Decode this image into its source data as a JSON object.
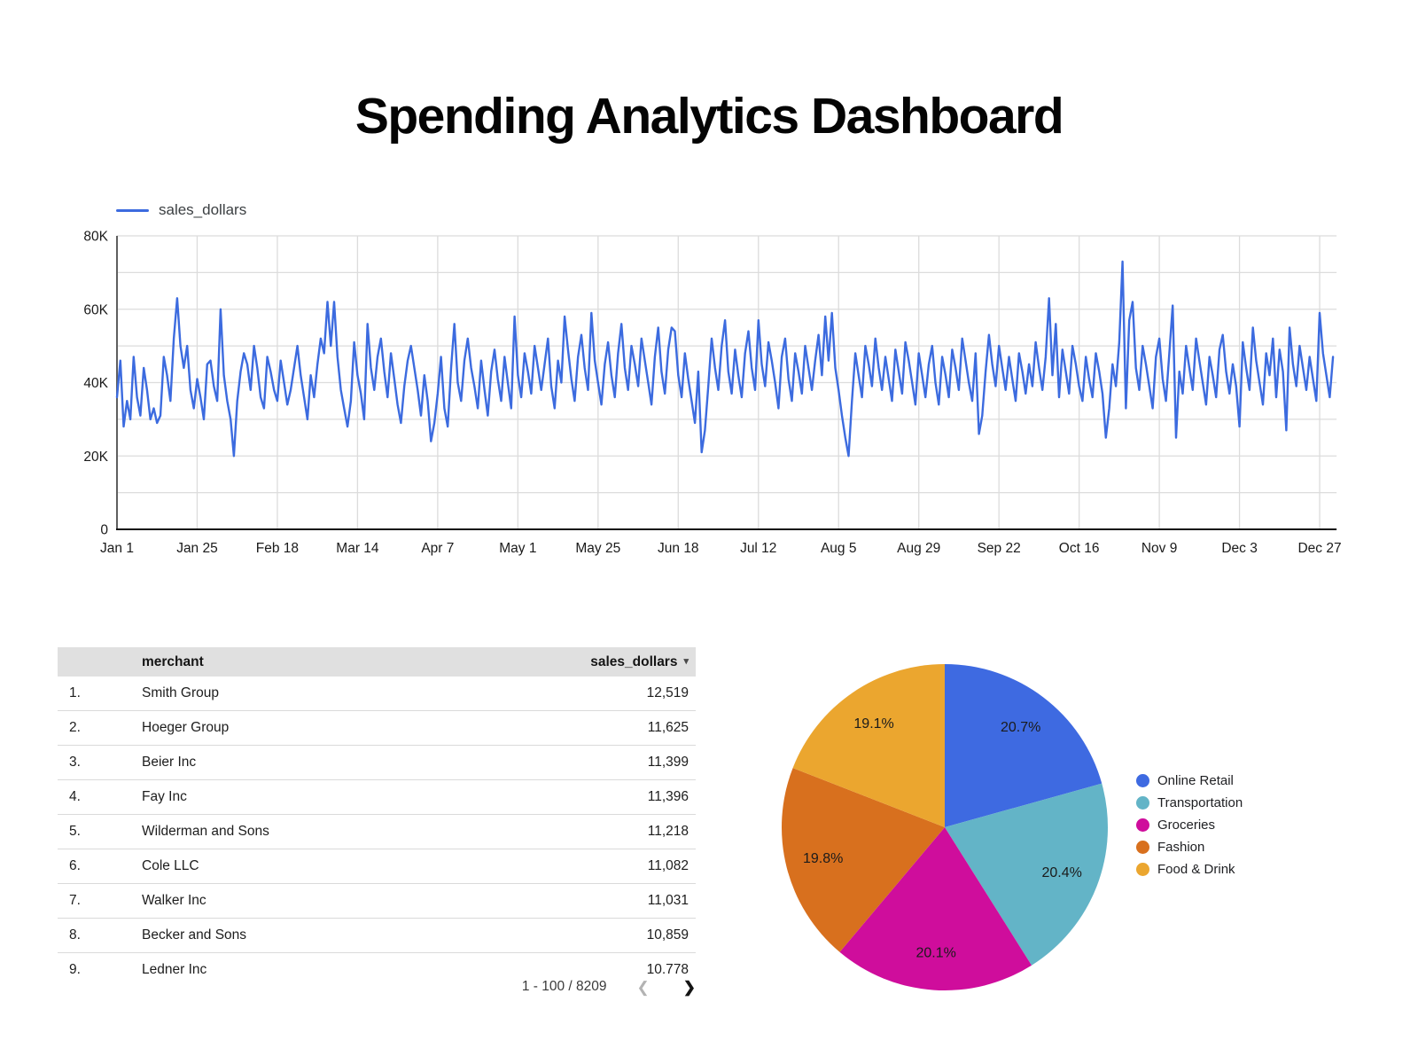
{
  "page": {
    "title": "Spending Analytics Dashboard"
  },
  "line_chart": {
    "legend_label": "sales_dollars"
  },
  "table": {
    "columns": {
      "merchant": "merchant",
      "sales": "sales_dollars"
    },
    "sort_icon": "▾",
    "rows": [
      {
        "rank": "1.",
        "merchant": "Smith Group",
        "sales": "12,519"
      },
      {
        "rank": "2.",
        "merchant": "Hoeger Group",
        "sales": "11,625"
      },
      {
        "rank": "3.",
        "merchant": "Beier Inc",
        "sales": "11,399"
      },
      {
        "rank": "4.",
        "merchant": "Fay Inc",
        "sales": "11,396"
      },
      {
        "rank": "5.",
        "merchant": "Wilderman and Sons",
        "sales": "11,218"
      },
      {
        "rank": "6.",
        "merchant": "Cole LLC",
        "sales": "11,082"
      },
      {
        "rank": "7.",
        "merchant": "Walker Inc",
        "sales": "11,031"
      },
      {
        "rank": "8.",
        "merchant": "Becker and Sons",
        "sales": "10,859"
      },
      {
        "rank": "9.",
        "merchant": "Ledner Inc",
        "sales": "10,778"
      }
    ],
    "pagination": {
      "range_label": "1 - 100 / 8209",
      "prev_icon": "❮",
      "next_icon": "❯"
    }
  },
  "chart_data": [
    {
      "type": "line",
      "title": "",
      "series": [
        {
          "name": "sales_dollars",
          "unit": "USD (thousands)",
          "values_thousands": [
            36,
            46,
            28,
            35,
            30,
            47,
            36,
            31,
            44,
            38,
            30,
            33,
            29,
            31,
            47,
            42,
            35,
            52,
            63,
            50,
            44,
            50,
            38,
            33,
            41,
            36,
            30,
            45,
            46,
            39,
            35,
            60,
            42,
            35,
            30,
            20,
            35,
            43,
            48,
            45,
            38,
            50,
            44,
            36,
            33,
            47,
            43,
            38,
            35,
            46,
            40,
            34,
            38,
            44,
            50,
            42,
            36,
            30,
            42,
            36,
            45,
            52,
            48,
            62,
            50,
            62,
            47,
            38,
            33,
            28,
            35,
            51,
            42,
            37,
            30,
            56,
            44,
            38,
            47,
            52,
            43,
            36,
            48,
            41,
            34,
            29,
            39,
            46,
            50,
            44,
            38,
            31,
            42,
            35,
            24,
            29,
            37,
            47,
            33,
            28,
            44,
            56,
            40,
            35,
            46,
            52,
            44,
            39,
            33,
            46,
            38,
            31,
            43,
            49,
            41,
            35,
            47,
            40,
            33,
            58,
            42,
            36,
            48,
            43,
            37,
            50,
            44,
            38,
            45,
            52,
            39,
            33,
            46,
            40,
            58,
            49,
            41,
            35,
            47,
            53,
            44,
            38,
            59,
            46,
            40,
            34,
            45,
            51,
            42,
            36,
            48,
            56,
            44,
            38,
            50,
            45,
            39,
            52,
            46,
            40,
            34,
            47,
            55,
            43,
            37,
            49,
            55,
            54,
            42,
            36,
            48,
            41,
            35,
            29,
            43,
            21,
            27,
            39,
            52,
            44,
            38,
            50,
            57,
            43,
            37,
            49,
            42,
            36,
            48,
            54,
            44,
            38,
            57,
            45,
            39,
            51,
            46,
            40,
            33,
            47,
            52,
            41,
            35,
            48,
            43,
            37,
            50,
            44,
            38,
            46,
            53,
            42,
            58,
            46,
            59,
            44,
            38,
            31,
            25,
            20,
            35,
            48,
            42,
            36,
            50,
            45,
            39,
            52,
            44,
            38,
            47,
            41,
            35,
            49,
            43,
            37,
            51,
            46,
            40,
            34,
            48,
            42,
            36,
            45,
            50,
            40,
            34,
            47,
            42,
            36,
            49,
            44,
            38,
            52,
            46,
            40,
            35,
            48,
            26,
            31,
            43,
            53,
            45,
            39,
            50,
            44,
            38,
            47,
            41,
            35,
            48,
            43,
            37,
            45,
            39,
            51,
            44,
            38,
            47,
            63,
            42,
            56,
            36,
            49,
            43,
            37,
            50,
            45,
            39,
            35,
            47,
            41,
            36,
            48,
            43,
            37,
            25,
            33,
            45,
            39,
            51,
            73,
            33,
            57,
            62,
            44,
            38,
            50,
            45,
            39,
            33,
            47,
            52,
            41,
            35,
            48,
            61,
            25,
            43,
            37,
            50,
            44,
            38,
            52,
            46,
            40,
            34,
            47,
            42,
            36,
            49,
            53,
            43,
            37,
            45,
            39,
            28,
            51,
            44,
            38,
            55,
            46,
            40,
            34,
            48,
            42,
            52,
            36,
            49,
            43,
            27,
            55,
            45,
            39,
            50,
            44,
            38,
            47,
            41,
            35,
            59,
            48,
            42,
            36,
            47
          ]
        }
      ],
      "x_tick_labels": [
        "Jan 1",
        "Jan 25",
        "Feb 18",
        "Mar 14",
        "Apr 7",
        "May 1",
        "May 25",
        "Jun 18",
        "Jul 12",
        "Aug 5",
        "Aug 29",
        "Sep 22",
        "Oct 16",
        "Nov 9",
        "Dec 3",
        "Dec 27"
      ],
      "x_tick_interval_days": 24,
      "y_tick_labels": [
        "0",
        "20K",
        "40K",
        "60K",
        "80K"
      ],
      "ylim_thousands": [
        0,
        80
      ],
      "grid": true,
      "legend_position": "top-left",
      "line_color": "#3c6bdf",
      "gridline_color": "#dcdcdc",
      "axis_color": "#5f5f5f",
      "baseline_color": "#111111",
      "tick_label_color": "#1a1a1a"
    },
    {
      "type": "pie",
      "labels": [
        "Online Retail",
        "Transportation",
        "Groceries",
        "Fashion",
        "Food & Drink"
      ],
      "values_percent": [
        20.7,
        20.4,
        20.1,
        19.8,
        19.1
      ],
      "slice_labels": [
        "20.7%",
        "20.4%",
        "20.1%",
        "19.8%",
        "19.1%"
      ],
      "colors": [
        "#3e6ae1",
        "#63b4c7",
        "#cf0d9c",
        "#d8701e",
        "#eba62f"
      ],
      "label_color": "#1b1b1b",
      "start_angle": "top",
      "direction": "clockwise",
      "legend_position": "right"
    }
  ]
}
